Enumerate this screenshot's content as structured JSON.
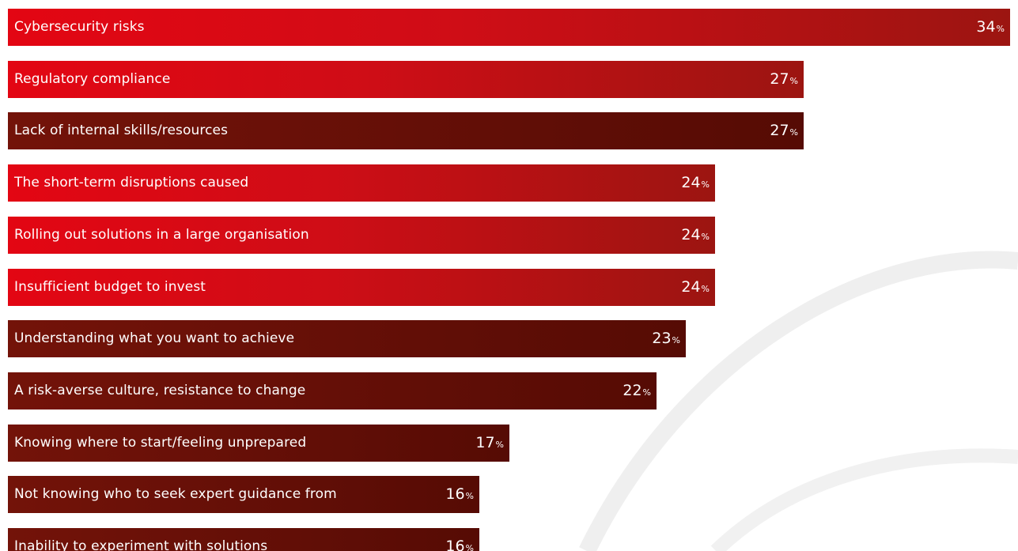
{
  "chart_data": {
    "type": "bar",
    "orientation": "horizontal",
    "title": "",
    "xlabel": "",
    "ylabel": "",
    "value_suffix": "%",
    "grid": false,
    "legend": false,
    "xlim": [
      0,
      34
    ],
    "categories": [
      "Cybersecurity risks",
      "Regulatory compliance",
      "Lack of internal skills/resources",
      "The short-term disruptions caused",
      "Rolling out solutions in a large organisation",
      "Insufficient budget to invest",
      "Understanding what you want to achieve",
      "A risk-averse culture, resistance to change",
      "Knowing where to start/feeling unprepared",
      "Not knowing who to seek expert guidance from",
      "Inability to experiment with solutions"
    ],
    "values": [
      34,
      27,
      27,
      24,
      24,
      24,
      23,
      22,
      17,
      16,
      16
    ],
    "bar_styles": [
      "red",
      "red",
      "dark",
      "red",
      "red",
      "red",
      "dark",
      "dark",
      "dark",
      "dark",
      "dark"
    ],
    "colors": {
      "red_start": "#e30613",
      "red_end": "#9c1511",
      "dark_start": "#731309",
      "dark_end": "#560b04",
      "text": "#ffffff",
      "background_arc": "#eeeeee"
    }
  }
}
